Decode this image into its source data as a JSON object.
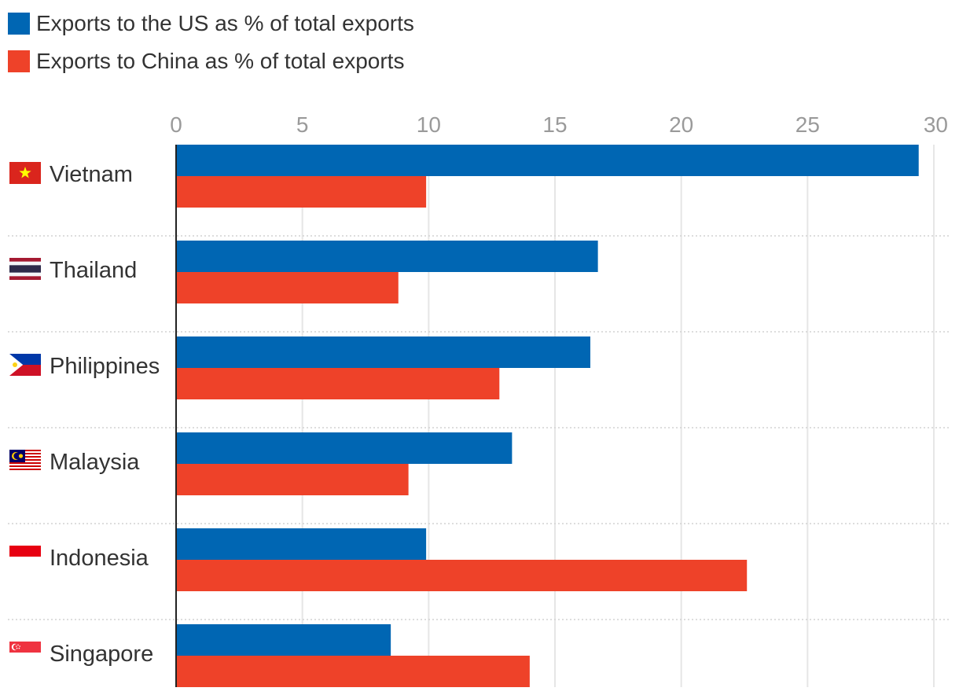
{
  "colors": {
    "us": "#0066b3",
    "china": "#ee4229",
    "grid": "#e6e6e6",
    "axis": "#222222",
    "tick": "#9a9a9a",
    "label": "#333333",
    "separator": "#d2d2d2"
  },
  "legend": {
    "us_label": "Exports to the US as % of total exports",
    "china_label": "Exports to China as % of total exports"
  },
  "chart_data": {
    "type": "bar",
    "orientation": "horizontal",
    "title": "",
    "xlabel": "",
    "ylabel": "",
    "xlim": [
      0,
      30
    ],
    "ticks": [
      "0",
      "5",
      "10",
      "15",
      "20",
      "25",
      "30"
    ],
    "grid": true,
    "legend_position": "top-left",
    "categories": [
      "Vietnam",
      "Thailand",
      "Philippines",
      "Malaysia",
      "Indonesia",
      "Singapore"
    ],
    "category_icons": [
      "vietnam-flag-icon",
      "thailand-flag-icon",
      "philippines-flag-icon",
      "malaysia-flag-icon",
      "indonesia-flag-icon",
      "singapore-flag-icon"
    ],
    "series": [
      {
        "name": "Exports to the US as % of total exports",
        "values": [
          29.4,
          16.7,
          16.4,
          13.3,
          9.9,
          8.5
        ]
      },
      {
        "name": "Exports to China as % of total exports",
        "values": [
          9.9,
          8.8,
          12.8,
          9.2,
          22.6,
          14.0
        ]
      }
    ]
  }
}
